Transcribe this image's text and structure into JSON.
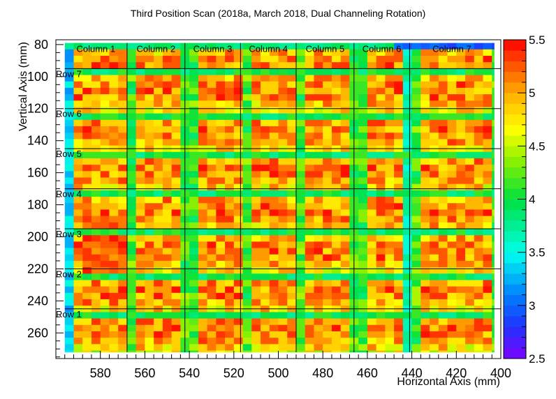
{
  "chart_data": {
    "type": "heatmap",
    "title": "Third Position Scan (2018a, March 2018, Dual Channeling Rotation)",
    "xlabel": "Horizontal Axis (mm)",
    "ylabel": "Vertical Axis (mm)",
    "xlim": [
      600,
      400
    ],
    "ylim": [
      276,
      77
    ],
    "x_ticks": [
      "580",
      "560",
      "540",
      "520",
      "500",
      "480",
      "460",
      "440",
      "420",
      "400"
    ],
    "y_ticks": [
      "80",
      "100",
      "120",
      "140",
      "160",
      "180",
      "200",
      "220",
      "240",
      "260"
    ],
    "colorbar": {
      "range": [
        2.5,
        5.5
      ],
      "ticks": [
        "2.5",
        "3",
        "3.5",
        "4",
        "4.5",
        "5",
        "5.5"
      ]
    },
    "columns": [
      {
        "label": "Column 1",
        "x_start": 596,
        "x_end": 568
      },
      {
        "label": "Column 2",
        "x_start": 568,
        "x_end": 542
      },
      {
        "label": "Column 3",
        "x_start": 542,
        "x_end": 517
      },
      {
        "label": "Column 4",
        "x_start": 517,
        "x_end": 492
      },
      {
        "label": "Column 5",
        "x_start": 492,
        "x_end": 466
      },
      {
        "label": "Column 6",
        "x_start": 466,
        "x_end": 441
      },
      {
        "label": "Column 7",
        "x_start": 441,
        "x_end": 403
      }
    ],
    "rows": [
      {
        "label": "Row 7",
        "y_top": 95
      },
      {
        "label": "Row 6",
        "y_top": 120
      },
      {
        "label": "Row 5",
        "y_top": 145
      },
      {
        "label": "Row 4",
        "y_top": 170
      },
      {
        "label": "Row 3",
        "y_top": 195
      },
      {
        "label": "Row 2",
        "y_top": 220
      },
      {
        "label": "Row 1",
        "y_top": 245
      }
    ],
    "grid": {
      "x_start": 596,
      "x_end": 403,
      "x_step": 4,
      "y_start": 79,
      "y_end": 272,
      "y_step": 4
    },
    "field": {
      "base": 4.6,
      "pad_amplitude": 0.7,
      "gap_value": 3.95,
      "outer_gap_value": 3.5,
      "left_edge_x": 594,
      "left_edge_value": 3.1,
      "left_hot_region": {
        "x_min": 570,
        "x_max": 590,
        "y_min": 185,
        "y_max": 225,
        "value": 5.45
      },
      "top_left_value": 3.7,
      "top_right_x": 450,
      "top_right_value": 2.8
    }
  }
}
